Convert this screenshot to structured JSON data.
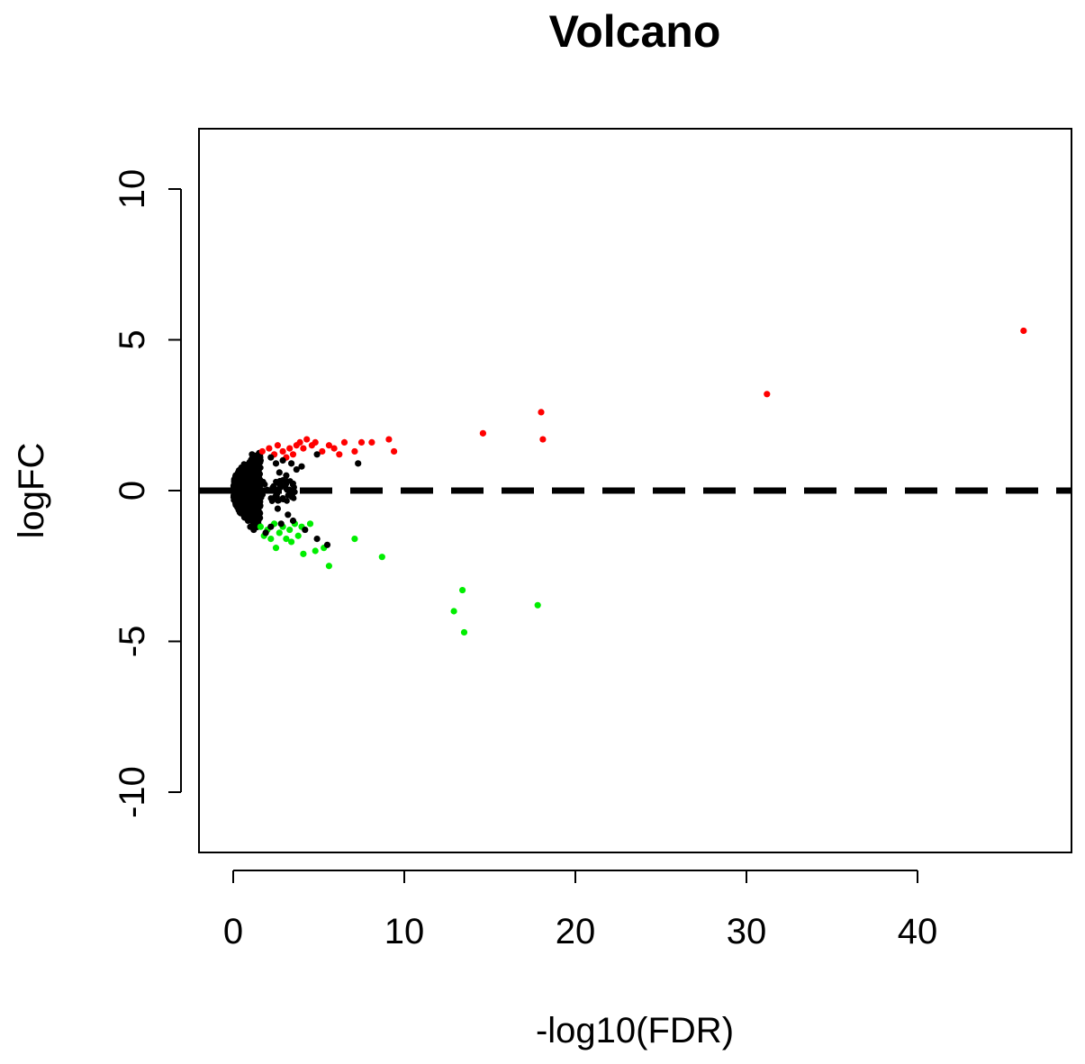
{
  "chart_data": {
    "type": "scatter",
    "title": "Volcano",
    "xlabel": "-log10(FDR)",
    "ylabel": "logFC",
    "xlim": [
      -2,
      49
    ],
    "ylim": [
      -12,
      12
    ],
    "x_ticks": [
      0,
      10,
      20,
      30,
      40
    ],
    "y_ticks": [
      -10,
      -5,
      0,
      5,
      10
    ],
    "x_tick_labels": [
      "0",
      "10",
      "20",
      "30",
      "40"
    ],
    "y_tick_labels": [
      "-10",
      "-5",
      "0",
      "5",
      "10"
    ],
    "grid": false,
    "legend": "none",
    "reference_line": {
      "y": 0,
      "style": "dashed",
      "color": "#000000"
    },
    "colors": {
      "up": "#ff0000",
      "down": "#00ee00",
      "ns": "#000000"
    },
    "series": [
      {
        "color": "#ff0000",
        "points": [
          [
            1.7,
            1.3
          ],
          [
            2.1,
            1.4
          ],
          [
            2.4,
            1.2
          ],
          [
            2.6,
            1.5
          ],
          [
            2.9,
            1.3
          ],
          [
            3.1,
            1.1
          ],
          [
            3.3,
            1.4
          ],
          [
            3.5,
            1.2
          ],
          [
            3.7,
            1.5
          ],
          [
            3.9,
            1.6
          ],
          [
            4.1,
            1.4
          ],
          [
            4.3,
            1.7
          ],
          [
            4.6,
            1.5
          ],
          [
            4.8,
            1.6
          ],
          [
            5.2,
            1.3
          ],
          [
            5.6,
            1.5
          ],
          [
            5.9,
            1.4
          ],
          [
            6.2,
            1.2
          ],
          [
            6.5,
            1.6
          ],
          [
            7.1,
            1.3
          ],
          [
            7.5,
            1.6
          ],
          [
            8.1,
            1.6
          ],
          [
            9.1,
            1.7
          ],
          [
            9.4,
            1.3
          ],
          [
            14.6,
            1.9
          ],
          [
            18.0,
            2.6
          ],
          [
            18.1,
            1.7
          ],
          [
            31.2,
            3.2
          ],
          [
            46.2,
            5.3
          ]
        ]
      },
      {
        "color": "#00ee00",
        "points": [
          [
            1.6,
            -1.2
          ],
          [
            1.8,
            -1.5
          ],
          [
            2.0,
            -1.3
          ],
          [
            2.2,
            -1.6
          ],
          [
            2.4,
            -1.1
          ],
          [
            2.5,
            -1.9
          ],
          [
            2.7,
            -1.4
          ],
          [
            2.9,
            -1.2
          ],
          [
            3.1,
            -1.6
          ],
          [
            3.3,
            -1.3
          ],
          [
            3.4,
            -1.7
          ],
          [
            3.6,
            -1.1
          ],
          [
            3.8,
            -1.5
          ],
          [
            4.0,
            -1.2
          ],
          [
            4.1,
            -2.1
          ],
          [
            4.5,
            -1.1
          ],
          [
            4.8,
            -2.0
          ],
          [
            5.3,
            -1.9
          ],
          [
            5.6,
            -2.5
          ],
          [
            7.1,
            -1.6
          ],
          [
            8.7,
            -2.2
          ],
          [
            12.9,
            -4.0
          ],
          [
            13.4,
            -3.3
          ],
          [
            13.5,
            -4.7
          ],
          [
            17.8,
            -3.8
          ]
        ]
      },
      {
        "color": "#000000",
        "points": [
          [
            7.3,
            0.9
          ],
          [
            4.0,
            0.8
          ],
          [
            3.4,
            0.9
          ],
          [
            2.9,
            1.0
          ],
          [
            2.5,
            0.9
          ],
          [
            2.2,
            1.1
          ],
          [
            3.2,
            -0.8
          ],
          [
            2.6,
            -0.6
          ],
          [
            3.5,
            -1.0
          ],
          [
            2.8,
            -1.1
          ],
          [
            4.2,
            -1.3
          ],
          [
            4.9,
            -1.6
          ],
          [
            5.5,
            -1.8
          ],
          [
            2.2,
            -1.2
          ],
          [
            1.9,
            -1.4
          ],
          [
            1.2,
            -1.3
          ],
          [
            1.0,
            -1.2
          ],
          [
            1.1,
            1.2
          ],
          [
            1.3,
            1.1
          ],
          [
            1.6,
            1.0
          ],
          [
            4.9,
            1.2
          ],
          [
            3.7,
            0.7
          ],
          [
            2.7,
            0.6
          ],
          [
            3.1,
            0.5
          ]
        ]
      }
    ],
    "ns_cloud": {
      "color": "#000000",
      "x_range": [
        0,
        1.6
      ],
      "y_max_abs": 1.3
    }
  }
}
